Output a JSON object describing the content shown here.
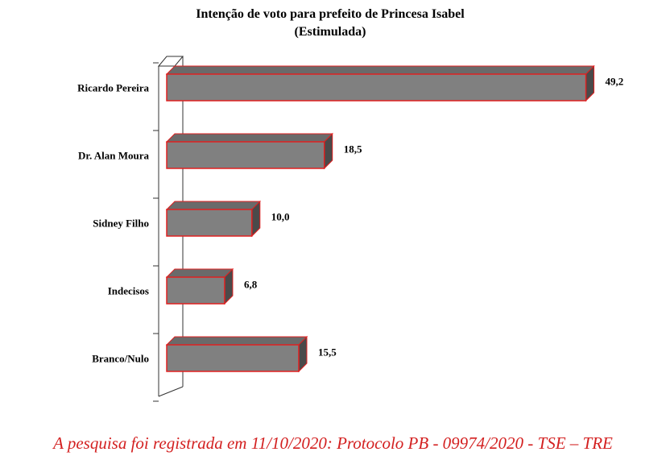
{
  "chart_data": {
    "type": "bar",
    "orientation": "horizontal",
    "style": "3d",
    "title": "Intenção de voto para prefeito de Princesa Isabel",
    "subtitle": "(Estimulada)",
    "categories": [
      "Ricardo Pereira",
      "Dr. Alan Moura",
      "Sidney Filho",
      "Indecisos",
      "Branco/Nulo"
    ],
    "values": [
      49.2,
      18.5,
      10.0,
      6.8,
      15.5
    ],
    "value_labels": [
      "49,2",
      "18,5",
      "10,0",
      "6,8",
      "15,5"
    ],
    "xlim": [
      0,
      50
    ],
    "grid": false,
    "legend": "none",
    "colors": {
      "bar_face": "#808080",
      "bar_top": "#6a6a6a",
      "bar_side": "#4a4a4a",
      "bar_outline": "#e02020"
    }
  },
  "footer": "A pesquisa foi registrada em 11/10/2020: Protocolo PB - 09974/2020 - TSE – TRE"
}
